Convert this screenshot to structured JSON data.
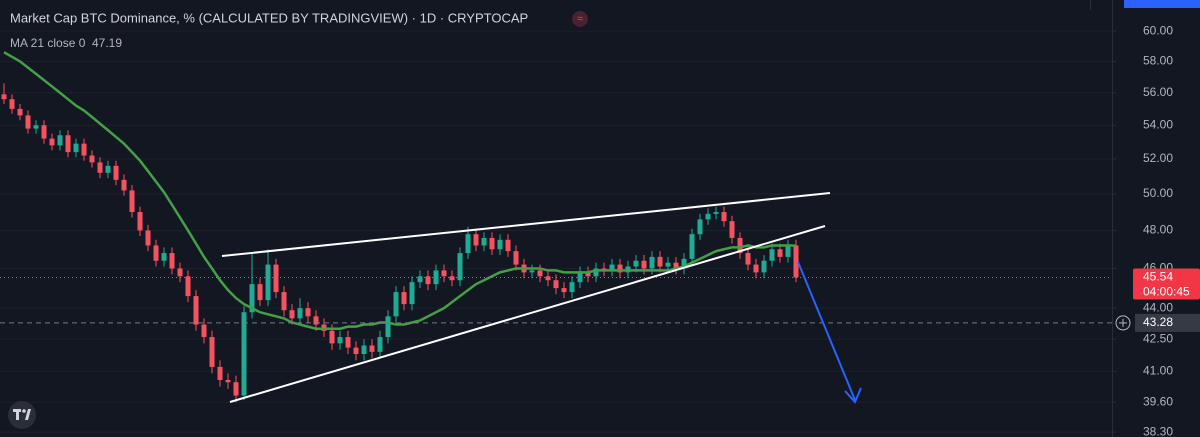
{
  "chart_data": {
    "type": "candlestick",
    "title": "Market Cap BTC Dominance, % (CALCULATED BY TRADINGVIEW) · 1D · CRYPTOCAP",
    "log_scale": true,
    "grid": true,
    "up_color": "#22ab94",
    "down_color": "#f7525f",
    "open": [
      55.9,
      55.6,
      55.0,
      54.6,
      53.8,
      54.0,
      53.2,
      52.8,
      53.4,
      52.4,
      52.9,
      52.2,
      51.8,
      51.2,
      51.6,
      50.8,
      50.2,
      49.0,
      48.0,
      47.2,
      46.4,
      46.8,
      46.0,
      45.6,
      44.6,
      43.2,
      42.6,
      41.2,
      40.6,
      40.5,
      39.9,
      43.8,
      45.2,
      44.4,
      46.2,
      44.8,
      43.9,
      43.5,
      44.0,
      43.6,
      43.2,
      42.9,
      42.3,
      42.6,
      42.1,
      41.8,
      42.2,
      41.9,
      42.6,
      43.6,
      44.8,
      44.2,
      45.3,
      45.6,
      45.2,
      45.9,
      45.6,
      45.4,
      46.8,
      47.8,
      47.2,
      47.6,
      47.0,
      47.5,
      46.9,
      46.2,
      45.8,
      45.9,
      45.6,
      45.4,
      45.0,
      44.8,
      45.3,
      45.8,
      45.6,
      46.0,
      45.9,
      46.2,
      45.8,
      46.1,
      46.4,
      46.0,
      46.6,
      46.1,
      46.3,
      46.0,
      46.5,
      47.8,
      48.6,
      48.9,
      49.0,
      48.5,
      47.6,
      46.8,
      46.2,
      45.8,
      46.4,
      47.0,
      46.6,
      47.2
    ],
    "high": [
      56.6,
      55.9,
      55.3,
      54.9,
      54.3,
      54.3,
      53.5,
      53.7,
      53.7,
      53.2,
      53.2,
      52.5,
      52.1,
      51.9,
      51.9,
      51.1,
      50.5,
      49.3,
      48.3,
      47.5,
      47.1,
      47.1,
      46.3,
      45.9,
      44.9,
      43.5,
      42.9,
      41.5,
      40.9,
      40.8,
      44.1,
      46.8,
      45.5,
      47.0,
      46.5,
      45.1,
      44.2,
      44.5,
      44.3,
      43.9,
      43.5,
      43.2,
      42.9,
      42.9,
      42.4,
      42.5,
      42.5,
      42.9,
      43.9,
      45.1,
      45.1,
      45.6,
      45.9,
      45.9,
      46.2,
      46.2,
      45.9,
      47.1,
      48.2,
      48.1,
      47.9,
      47.9,
      47.8,
      47.8,
      47.2,
      46.5,
      46.2,
      46.2,
      45.9,
      45.7,
      45.3,
      45.6,
      46.1,
      46.1,
      46.3,
      46.3,
      46.5,
      46.5,
      46.4,
      46.7,
      46.7,
      46.9,
      46.9,
      46.6,
      46.6,
      46.8,
      48.1,
      48.9,
      49.2,
      49.3,
      49.3,
      48.8,
      47.9,
      47.1,
      46.5,
      46.7,
      47.3,
      47.3,
      47.5,
      47.5
    ],
    "low": [
      55.3,
      54.7,
      54.3,
      53.5,
      53.5,
      52.9,
      52.5,
      52.5,
      52.1,
      52.1,
      51.9,
      51.5,
      50.9,
      50.9,
      50.5,
      49.9,
      48.7,
      47.7,
      46.9,
      46.1,
      46.1,
      45.7,
      45.3,
      44.3,
      42.9,
      42.3,
      40.9,
      40.3,
      40.2,
      39.6,
      39.7,
      43.5,
      44.1,
      44.1,
      44.5,
      43.6,
      43.2,
      43.2,
      43.3,
      42.9,
      42.6,
      42.0,
      42.0,
      41.8,
      41.5,
      41.5,
      41.6,
      41.6,
      42.3,
      43.3,
      43.9,
      43.9,
      45.0,
      44.9,
      44.9,
      45.3,
      45.1,
      45.1,
      46.5,
      46.9,
      46.9,
      46.7,
      46.7,
      46.6,
      45.9,
      45.5,
      45.5,
      45.3,
      45.1,
      44.7,
      44.5,
      44.5,
      45.0,
      45.3,
      45.3,
      45.6,
      45.6,
      45.5,
      45.5,
      45.8,
      45.7,
      45.7,
      45.8,
      45.8,
      45.7,
      45.7,
      46.2,
      47.5,
      48.3,
      48.6,
      48.2,
      47.3,
      46.5,
      45.9,
      45.5,
      45.5,
      46.1,
      46.3,
      46.3,
      45.3
    ],
    "close": [
      55.6,
      55.0,
      54.6,
      53.8,
      54.0,
      53.2,
      52.8,
      53.4,
      52.4,
      52.9,
      52.2,
      51.8,
      51.2,
      51.6,
      50.8,
      50.2,
      49.0,
      48.0,
      47.2,
      46.4,
      46.8,
      46.0,
      45.6,
      44.6,
      43.2,
      42.6,
      41.2,
      40.6,
      40.5,
      39.9,
      43.8,
      45.2,
      44.4,
      46.2,
      44.8,
      43.9,
      43.5,
      44.0,
      43.6,
      43.2,
      42.9,
      42.3,
      42.6,
      42.1,
      41.8,
      42.2,
      41.9,
      42.6,
      43.6,
      44.8,
      44.2,
      45.3,
      45.6,
      45.2,
      45.9,
      45.6,
      45.4,
      46.8,
      47.8,
      47.2,
      47.6,
      47.0,
      47.5,
      46.9,
      46.2,
      45.8,
      45.9,
      45.6,
      45.4,
      45.0,
      44.8,
      45.3,
      45.8,
      45.6,
      46.0,
      45.9,
      46.2,
      45.8,
      46.1,
      46.4,
      46.0,
      46.6,
      46.1,
      46.3,
      46.0,
      46.5,
      47.8,
      48.6,
      48.9,
      49.0,
      48.5,
      47.6,
      46.8,
      46.2,
      45.8,
      46.4,
      47.0,
      46.6,
      47.2,
      45.54
    ],
    "ma": {
      "name": "MA 21 close 0",
      "color": "#43a047",
      "last_value": 47.19,
      "values": [
        58.6,
        58.3,
        58.0,
        57.6,
        57.2,
        56.8,
        56.4,
        56.0,
        55.6,
        55.2,
        54.9,
        54.5,
        54.1,
        53.7,
        53.3,
        52.9,
        52.4,
        51.9,
        51.3,
        50.7,
        50.1,
        49.4,
        48.7,
        48.0,
        47.3,
        46.6,
        46.0,
        45.4,
        44.9,
        44.5,
        44.2,
        44.0,
        43.8,
        43.7,
        43.6,
        43.5,
        43.3,
        43.2,
        43.1,
        43.0,
        43.0,
        43.0,
        43.0,
        43.1,
        43.1,
        43.2,
        43.2,
        43.3,
        43.3,
        43.2,
        43.2,
        43.3,
        43.4,
        43.6,
        43.8,
        44.0,
        44.3,
        44.6,
        44.9,
        45.2,
        45.4,
        45.6,
        45.8,
        45.9,
        46.0,
        46.0,
        46.0,
        46.0,
        45.9,
        45.9,
        45.8,
        45.8,
        45.8,
        45.8,
        45.9,
        45.9,
        45.9,
        45.9,
        45.9,
        45.9,
        45.9,
        45.9,
        45.9,
        45.9,
        46.0,
        46.1,
        46.3,
        46.5,
        46.7,
        46.9,
        47.0,
        47.1,
        47.1,
        47.2,
        47.1,
        47.1,
        47.2,
        47.2,
        47.2,
        47.19
      ]
    },
    "ylim": [
      38.09,
      62.13
    ],
    "yticks": [
      {
        "value": 60,
        "label": "60.00"
      },
      {
        "value": 58,
        "label": "58.00"
      },
      {
        "value": 56,
        "label": "56.00"
      },
      {
        "value": 54,
        "label": "54.00"
      },
      {
        "value": 52,
        "label": "52.00"
      },
      {
        "value": 50,
        "label": "50.00"
      },
      {
        "value": 48,
        "label": "48.00"
      },
      {
        "value": 46,
        "label": "46.00"
      },
      {
        "value": 44,
        "label": "44.00"
      },
      {
        "value": 42.5,
        "label": "42.50"
      },
      {
        "value": 41,
        "label": "41.00"
      },
      {
        "value": 39.6,
        "label": "39.60"
      },
      {
        "value": 38.3,
        "label": "38.30"
      }
    ],
    "last_price": 45.54,
    "countdown": "04:00:45",
    "crosshair_price": 43.28
  }
}
